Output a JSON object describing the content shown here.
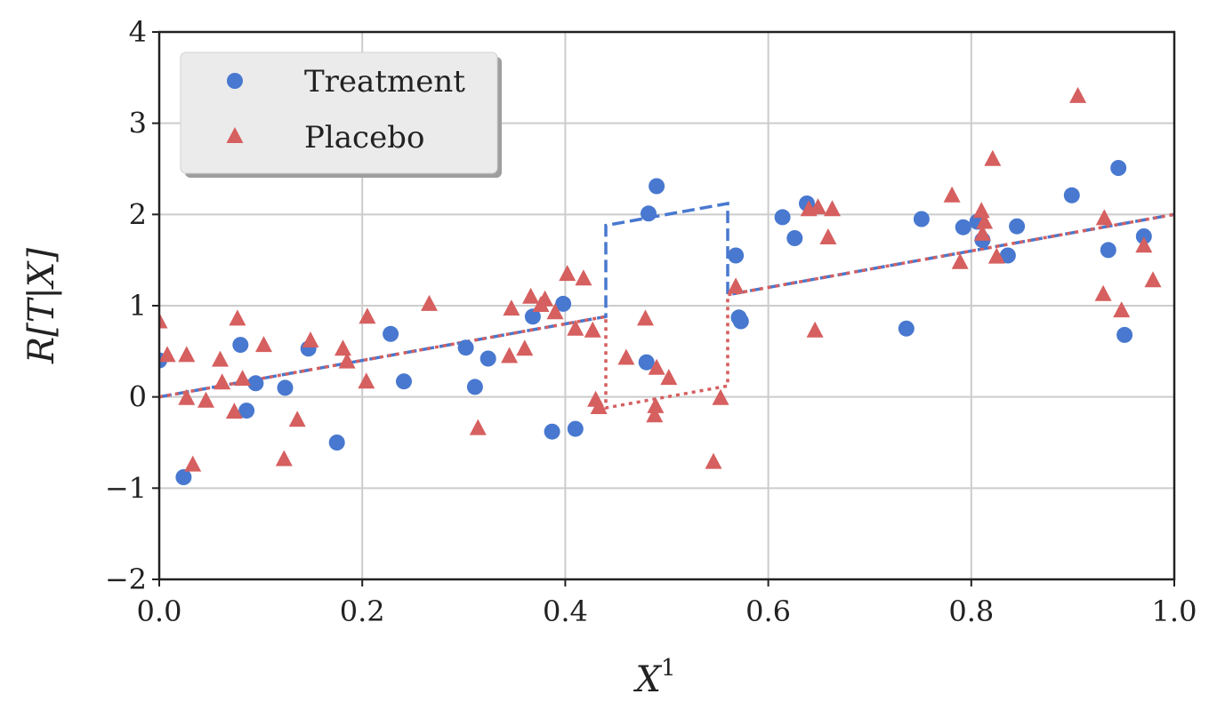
{
  "chart_data": {
    "type": "scatter",
    "xlabel": "X",
    "xlabel_sup": "1",
    "ylabel": "R[T|X]",
    "xlim": [
      0,
      1
    ],
    "ylim": [
      -2,
      4
    ],
    "xticks": [
      0.0,
      0.2,
      0.4,
      0.6,
      0.8,
      1.0
    ],
    "xtick_labels": [
      "0.0",
      "0.2",
      "0.4",
      "0.6",
      "0.8",
      "1.0"
    ],
    "yticks": [
      -2,
      -1,
      0,
      1,
      2,
      3,
      4
    ],
    "ytick_labels": [
      "−2",
      "−1",
      "0",
      "1",
      "2",
      "3",
      "4"
    ],
    "grid": true,
    "legend_position": "top-left",
    "series": [
      {
        "name": "Treatment",
        "marker": "circle",
        "color": "#4878cf",
        "points": [
          [
            0.0,
            0.4
          ],
          [
            0.024,
            -0.88
          ],
          [
            0.08,
            0.57
          ],
          [
            0.086,
            -0.15
          ],
          [
            0.095,
            0.15
          ],
          [
            0.124,
            0.1
          ],
          [
            0.147,
            0.53
          ],
          [
            0.175,
            -0.5
          ],
          [
            0.228,
            0.69
          ],
          [
            0.241,
            0.17
          ],
          [
            0.302,
            0.54
          ],
          [
            0.311,
            0.11
          ],
          [
            0.324,
            0.42
          ],
          [
            0.368,
            0.88
          ],
          [
            0.387,
            -0.38
          ],
          [
            0.398,
            1.02
          ],
          [
            0.41,
            -0.35
          ],
          [
            0.48,
            0.38
          ],
          [
            0.482,
            2.01
          ],
          [
            0.49,
            2.31
          ],
          [
            0.568,
            1.55
          ],
          [
            0.571,
            0.87
          ],
          [
            0.573,
            0.83
          ],
          [
            0.614,
            1.97
          ],
          [
            0.626,
            1.74
          ],
          [
            0.638,
            2.12
          ],
          [
            0.736,
            0.75
          ],
          [
            0.751,
            1.95
          ],
          [
            0.792,
            1.86
          ],
          [
            0.806,
            1.92
          ],
          [
            0.811,
            1.72
          ],
          [
            0.836,
            1.55
          ],
          [
            0.845,
            1.87
          ],
          [
            0.899,
            2.21
          ],
          [
            0.935,
            1.61
          ],
          [
            0.945,
            2.51
          ],
          [
            0.951,
            0.68
          ],
          [
            0.97,
            1.76
          ]
        ]
      },
      {
        "name": "Placebo",
        "marker": "triangle",
        "color": "#d65f5f",
        "points": [
          [
            0.0,
            0.83
          ],
          [
            0.008,
            0.46
          ],
          [
            0.027,
            0.46
          ],
          [
            0.027,
            -0.01
          ],
          [
            0.033,
            -0.74
          ],
          [
            0.046,
            -0.04
          ],
          [
            0.06,
            0.41
          ],
          [
            0.062,
            0.16
          ],
          [
            0.074,
            -0.16
          ],
          [
            0.077,
            0.86
          ],
          [
            0.082,
            0.2
          ],
          [
            0.103,
            0.57
          ],
          [
            0.123,
            -0.68
          ],
          [
            0.136,
            -0.25
          ],
          [
            0.149,
            0.62
          ],
          [
            0.181,
            0.53
          ],
          [
            0.185,
            0.39
          ],
          [
            0.204,
            0.17
          ],
          [
            0.205,
            0.88
          ],
          [
            0.266,
            1.02
          ],
          [
            0.314,
            -0.34
          ],
          [
            0.345,
            0.45
          ],
          [
            0.347,
            0.97
          ],
          [
            0.36,
            0.53
          ],
          [
            0.366,
            1.1
          ],
          [
            0.376,
            1.01
          ],
          [
            0.38,
            1.07
          ],
          [
            0.39,
            0.93
          ],
          [
            0.402,
            1.35
          ],
          [
            0.41,
            0.75
          ],
          [
            0.418,
            1.3
          ],
          [
            0.427,
            0.73
          ],
          [
            0.43,
            -0.03
          ],
          [
            0.433,
            -0.11
          ],
          [
            0.46,
            0.43
          ],
          [
            0.479,
            0.86
          ],
          [
            0.488,
            -0.2
          ],
          [
            0.489,
            -0.1
          ],
          [
            0.49,
            0.32
          ],
          [
            0.502,
            0.21
          ],
          [
            0.546,
            -0.71
          ],
          [
            0.553,
            -0.01
          ],
          [
            0.568,
            1.21
          ],
          [
            0.64,
            2.06
          ],
          [
            0.646,
            0.73
          ],
          [
            0.649,
            2.08
          ],
          [
            0.659,
            1.75
          ],
          [
            0.663,
            2.06
          ],
          [
            0.781,
            2.21
          ],
          [
            0.789,
            1.48
          ],
          [
            0.81,
            2.04
          ],
          [
            0.811,
            1.79
          ],
          [
            0.813,
            1.92
          ],
          [
            0.821,
            2.61
          ],
          [
            0.825,
            1.54
          ],
          [
            0.905,
            3.3
          ],
          [
            0.93,
            1.13
          ],
          [
            0.931,
            1.96
          ],
          [
            0.948,
            0.95
          ],
          [
            0.97,
            1.66
          ],
          [
            0.979,
            1.28
          ]
        ]
      }
    ],
    "lines": [
      {
        "name": "Treatment model",
        "style": "dashed",
        "color": "#4878cf",
        "points": [
          [
            0.0,
            0.0
          ],
          [
            0.44,
            0.88
          ],
          [
            0.44,
            1.88
          ],
          [
            0.56,
            2.12
          ],
          [
            0.56,
            1.12
          ],
          [
            1.0,
            2.0
          ]
        ]
      },
      {
        "name": "Placebo model",
        "style": "dotted",
        "color": "#d65f5f",
        "points": [
          [
            0.0,
            0.0
          ],
          [
            0.44,
            0.88
          ],
          [
            0.44,
            -0.12
          ],
          [
            0.56,
            0.12
          ],
          [
            0.56,
            1.12
          ],
          [
            1.0,
            2.0
          ]
        ]
      }
    ]
  }
}
